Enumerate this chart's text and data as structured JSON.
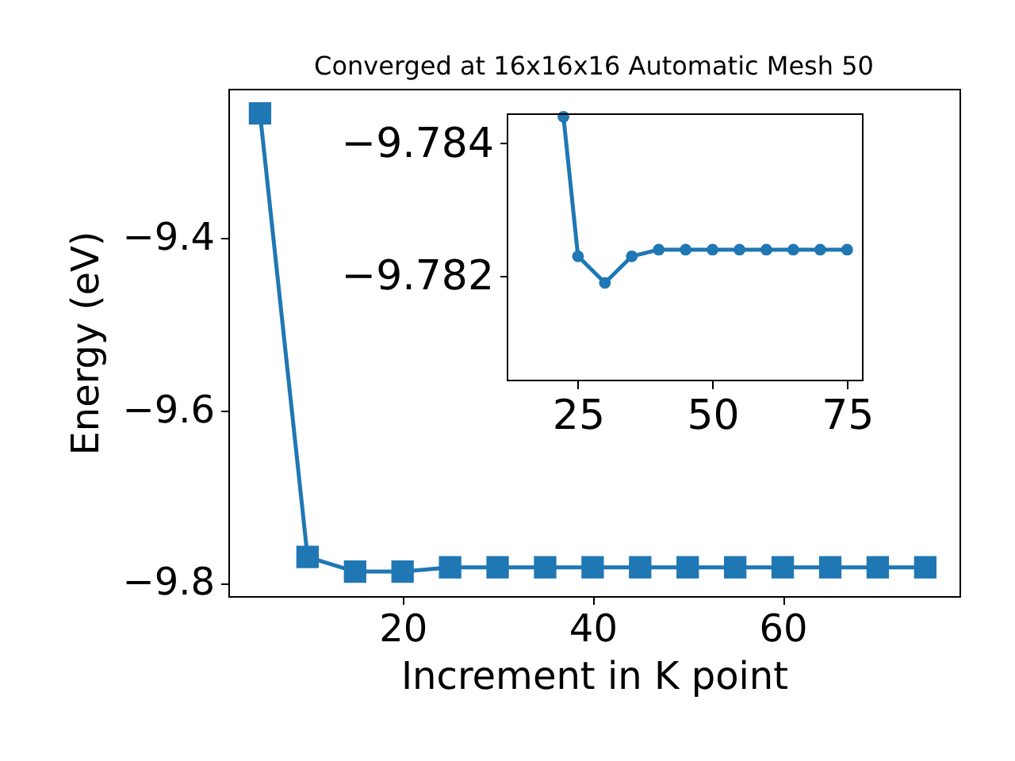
{
  "chart_data": [
    {
      "type": "line",
      "title": "Converged at 16x16x16 Automatic Mesh 50",
      "xlabel": "Increment in K point",
      "ylabel": "Energy (eV)",
      "x": [
        5,
        10,
        15,
        20,
        25,
        30,
        35,
        40,
        45,
        50,
        55,
        60,
        65,
        70,
        75
      ],
      "series": [
        {
          "color": "#1f77b4",
          "values": [
            -9.256,
            -9.77,
            -9.787,
            -9.787,
            -9.782,
            -9.782,
            -9.782,
            -9.782,
            -9.782,
            -9.782,
            -9.782,
            -9.782,
            -9.782,
            -9.782,
            -9.782
          ]
        }
      ],
      "marker": "square",
      "xlim": [
        1.67,
        78.6
      ],
      "ylim": [
        -9.8154,
        -9.2275
      ],
      "xticks": [
        20,
        40,
        60
      ],
      "yticks": [
        -9.8,
        -9.6,
        -9.4
      ],
      "grid": false
    },
    {
      "type": "line",
      "x": [
        22.3,
        25,
        30,
        35,
        40,
        45,
        50,
        55,
        60,
        65,
        70,
        75
      ],
      "series": [
        {
          "color": "#1f77b4",
          "values": [
            -9.7844,
            -9.7823,
            -9.7819,
            -9.7823,
            -9.7824,
            -9.7824,
            -9.7824,
            -9.7824,
            -9.7824,
            -9.7824,
            -9.7824,
            -9.7824
          ]
        }
      ],
      "marker": "circle",
      "xlim": [
        11.9,
        77.9
      ],
      "ylim": [
        -9.78043,
        -9.78444
      ],
      "xticks": [
        25,
        50,
        75
      ],
      "yticks": [
        -9.784,
        -9.782
      ],
      "grid": false
    }
  ]
}
